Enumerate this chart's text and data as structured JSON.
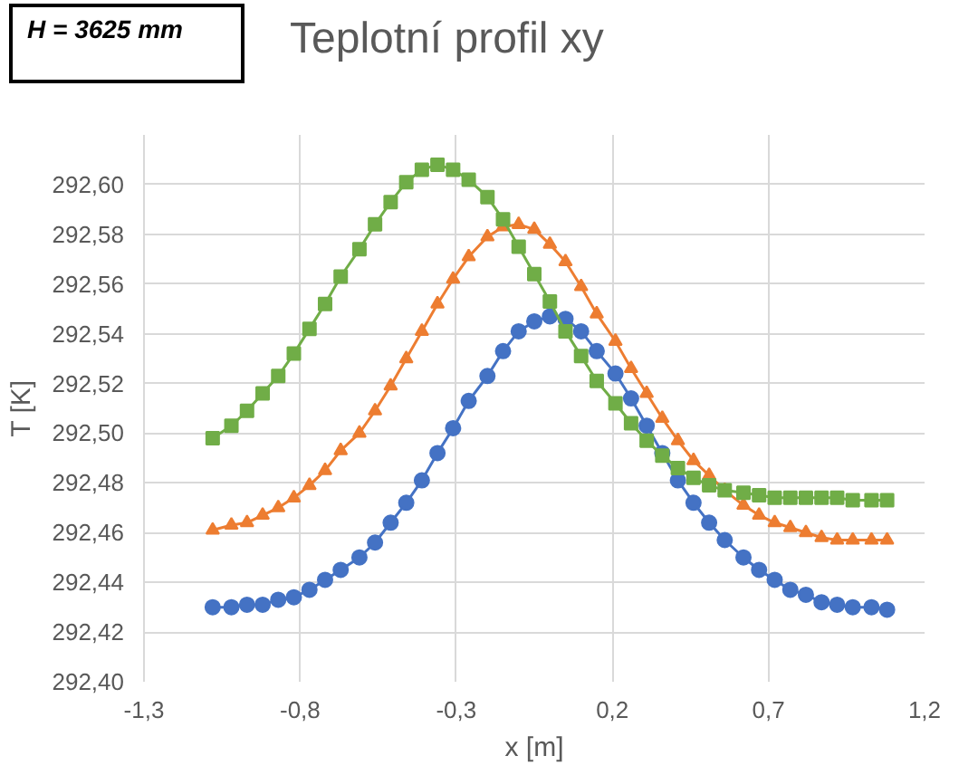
{
  "chart_data": {
    "type": "line",
    "title": "Teplotní profil xy",
    "xlabel": "x [m]",
    "ylabel": "T [K]",
    "annotations": [
      "H = 3625 mm"
    ],
    "x": [
      -1.08,
      -1.02,
      -0.97,
      -0.92,
      -0.87,
      -0.82,
      -0.77,
      -0.72,
      -0.67,
      -0.61,
      -0.56,
      -0.51,
      -0.46,
      -0.41,
      -0.36,
      -0.31,
      -0.26,
      -0.2,
      -0.15,
      -0.1,
      -0.05,
      0,
      0.05,
      0.1,
      0.15,
      0.21,
      0.26,
      0.31,
      0.36,
      0.41,
      0.46,
      0.51,
      0.56,
      0.62,
      0.67,
      0.72,
      0.77,
      0.82,
      0.87,
      0.92,
      0.97,
      1.03,
      1.08
    ],
    "series": [
      {
        "color": "#4472c4",
        "marker": "circle",
        "values": [
          292.43,
          292.43,
          292.431,
          292.431,
          292.433,
          292.434,
          292.437,
          292.441,
          292.445,
          292.45,
          292.456,
          292.464,
          292.472,
          292.481,
          292.492,
          292.502,
          292.513,
          292.523,
          292.533,
          292.541,
          292.545,
          292.547,
          292.546,
          292.541,
          292.533,
          292.524,
          292.514,
          292.503,
          292.492,
          292.481,
          292.472,
          292.464,
          292.457,
          292.45,
          292.445,
          292.441,
          292.437,
          292.435,
          292.432,
          292.431,
          292.43,
          292.43,
          292.429
        ]
      },
      {
        "color": "#ed7d31",
        "marker": "triangle",
        "values": [
          292.461,
          292.463,
          292.464,
          292.467,
          292.47,
          292.474,
          292.479,
          292.485,
          292.493,
          292.5,
          292.509,
          292.519,
          292.53,
          292.541,
          292.552,
          292.562,
          292.571,
          292.579,
          292.583,
          292.584,
          292.582,
          292.576,
          292.569,
          292.559,
          292.548,
          292.537,
          292.526,
          292.516,
          292.506,
          292.497,
          292.489,
          292.483,
          292.477,
          292.471,
          292.467,
          292.464,
          292.462,
          292.46,
          292.458,
          292.457,
          292.457,
          292.457,
          292.457
        ]
      },
      {
        "color": "#70ad47",
        "marker": "square",
        "values": [
          292.498,
          292.503,
          292.509,
          292.516,
          292.523,
          292.532,
          292.542,
          292.552,
          292.563,
          292.574,
          292.584,
          292.593,
          292.601,
          292.606,
          292.608,
          292.606,
          292.602,
          292.595,
          292.586,
          292.575,
          292.564,
          292.553,
          292.541,
          292.531,
          292.521,
          292.512,
          292.504,
          292.497,
          292.491,
          292.486,
          292.482,
          292.479,
          292.477,
          292.476,
          292.475,
          292.474,
          292.474,
          292.474,
          292.474,
          292.474,
          292.473,
          292.473,
          292.473
        ]
      }
    ],
    "xlim": [
      -1.3,
      1.2
    ],
    "xticks": [
      {
        "value": -1.3,
        "label": "-1,3"
      },
      {
        "value": -0.8,
        "label": "-0,8"
      },
      {
        "value": -0.3,
        "label": "-0,3"
      },
      {
        "value": 0.2,
        "label": "0,2"
      },
      {
        "value": 0.7,
        "label": "0,7"
      },
      {
        "value": 1.2,
        "label": "1,2"
      }
    ],
    "ylim": [
      292.4,
      292.62
    ],
    "yticks": [
      {
        "value": 292.4,
        "label": "292,40"
      },
      {
        "value": 292.42,
        "label": "292,42"
      },
      {
        "value": 292.44,
        "label": "292,44"
      },
      {
        "value": 292.46,
        "label": "292,46"
      },
      {
        "value": 292.48,
        "label": "292,48"
      },
      {
        "value": 292.5,
        "label": "292,50"
      },
      {
        "value": 292.52,
        "label": "292,52"
      },
      {
        "value": 292.54,
        "label": "292,54"
      },
      {
        "value": 292.56,
        "label": "292,56"
      },
      {
        "value": 292.58,
        "label": "292,58"
      },
      {
        "value": 292.6,
        "label": "292,60"
      }
    ],
    "grid": true,
    "line_style": "solid"
  }
}
